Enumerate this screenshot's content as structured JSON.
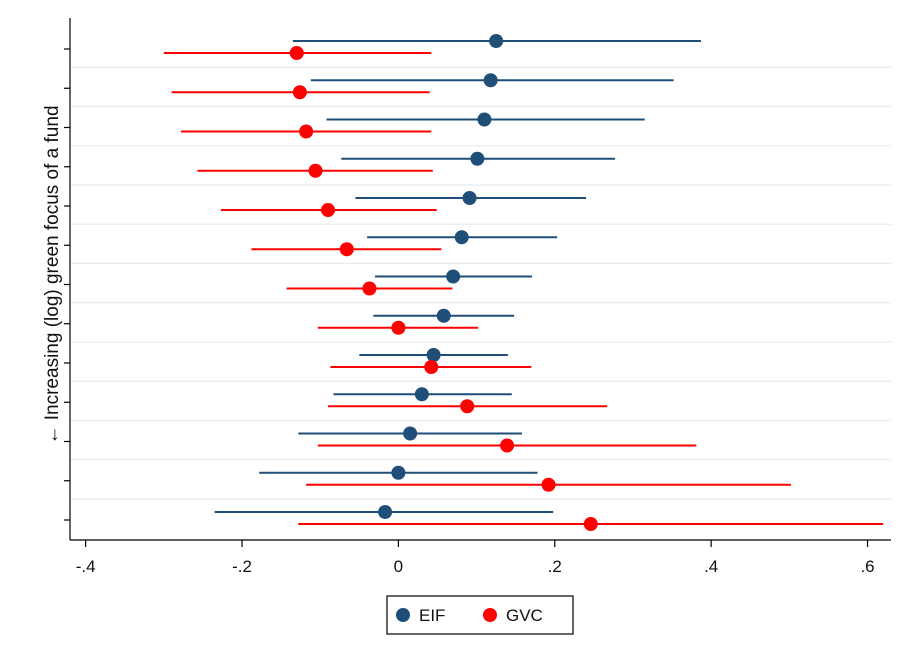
{
  "chart_data": {
    "type": "scatter",
    "title": "",
    "xlabel": "",
    "ylabel": "← Increasing (log) green focus of a fund",
    "xlim": [
      -0.42,
      0.63
    ],
    "x_ticks": [
      -0.4,
      -0.2,
      0,
      0.2,
      0.4,
      0.6
    ],
    "x_tick_labels": [
      "-.4",
      "-.2",
      "0",
      ".2",
      ".4",
      ".6"
    ],
    "grid": true,
    "legend_position": "bottom",
    "groups": 13,
    "series": [
      {
        "name": "EIF",
        "color": "#1f4e79",
        "points": [
          {
            "estimate": 0.125,
            "lower": -0.135,
            "upper": 0.387
          },
          {
            "estimate": 0.118,
            "lower": -0.112,
            "upper": 0.352
          },
          {
            "estimate": 0.11,
            "lower": -0.092,
            "upper": 0.315
          },
          {
            "estimate": 0.101,
            "lower": -0.073,
            "upper": 0.277
          },
          {
            "estimate": 0.091,
            "lower": -0.055,
            "upper": 0.24
          },
          {
            "estimate": 0.081,
            "lower": -0.04,
            "upper": 0.203
          },
          {
            "estimate": 0.07,
            "lower": -0.03,
            "upper": 0.171
          },
          {
            "estimate": 0.058,
            "lower": -0.032,
            "upper": 0.148
          },
          {
            "estimate": 0.045,
            "lower": -0.05,
            "upper": 0.14
          },
          {
            "estimate": 0.03,
            "lower": -0.083,
            "upper": 0.145
          },
          {
            "estimate": 0.015,
            "lower": -0.128,
            "upper": 0.158
          },
          {
            "estimate": 0.0,
            "lower": -0.178,
            "upper": 0.178
          },
          {
            "estimate": -0.017,
            "lower": -0.235,
            "upper": 0.198
          }
        ]
      },
      {
        "name": "GVC",
        "color": "#ff0000",
        "points": [
          {
            "estimate": -0.13,
            "lower": -0.3,
            "upper": 0.042
          },
          {
            "estimate": -0.126,
            "lower": -0.29,
            "upper": 0.04
          },
          {
            "estimate": -0.118,
            "lower": -0.278,
            "upper": 0.042
          },
          {
            "estimate": -0.106,
            "lower": -0.257,
            "upper": 0.044
          },
          {
            "estimate": -0.09,
            "lower": -0.227,
            "upper": 0.049
          },
          {
            "estimate": -0.066,
            "lower": -0.188,
            "upper": 0.055
          },
          {
            "estimate": -0.037,
            "lower": -0.143,
            "upper": 0.069
          },
          {
            "estimate": 0.0,
            "lower": -0.103,
            "upper": 0.102
          },
          {
            "estimate": 0.042,
            "lower": -0.087,
            "upper": 0.17
          },
          {
            "estimate": 0.088,
            "lower": -0.09,
            "upper": 0.267
          },
          {
            "estimate": 0.139,
            "lower": -0.103,
            "upper": 0.381
          },
          {
            "estimate": 0.192,
            "lower": -0.118,
            "upper": 0.502
          },
          {
            "estimate": 0.246,
            "lower": -0.128,
            "upper": 0.62
          }
        ]
      }
    ]
  }
}
